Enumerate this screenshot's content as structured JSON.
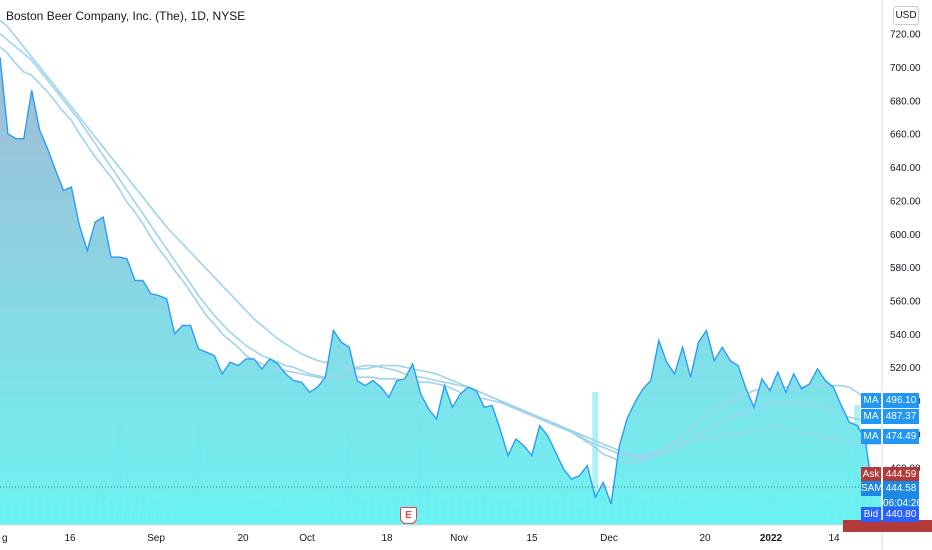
{
  "title": "Boston Beer Company, Inc. (The), 1D, NYSE",
  "currency_button": "USD",
  "earnings_marker": "E",
  "colors": {
    "price_line": "#2a9df4",
    "area_top": "#9db7d3",
    "area_bottom": "#66f2f2",
    "ma": "#9fd3ee",
    "volume": "#7fe9ec",
    "ask": "#b33a3a",
    "bid": "#2962ff",
    "last": "#1e88e5"
  },
  "price_axis": {
    "ticks": [
      "720.00",
      "700.00",
      "680.00",
      "660.00",
      "640.00",
      "620.00",
      "600.00",
      "580.00",
      "560.00",
      "540.00",
      "520.00",
      "500.00",
      "480.00",
      "460.00"
    ]
  },
  "time_axis": {
    "ticks": [
      "g",
      "16",
      "Sep",
      "20",
      "Oct",
      "18",
      "Nov",
      "15",
      "Dec",
      "20",
      "2022",
      "14"
    ]
  },
  "price_tags": [
    {
      "label": "MA",
      "value": "496.10",
      "color": "#2196f3"
    },
    {
      "label": "MA",
      "value": "487.37",
      "color": "#2196f3"
    },
    {
      "label": "MA",
      "value": "474.49",
      "color": "#2196f3"
    },
    {
      "label": "Ask",
      "value": "444.59",
      "color": "#b33a3a"
    },
    {
      "label": "SAM",
      "value": "444.58",
      "color": "#1e88e5"
    },
    {
      "label": "",
      "value": "06:04:26",
      "color": "#1e88e5"
    },
    {
      "label": "Bid",
      "value": "440.80",
      "color": "#2962ff"
    }
  ],
  "chart_data": {
    "type": "area",
    "title": "Boston Beer Company, Inc. (The), 1D, NYSE",
    "x_range": [
      "2021-08-10",
      "2022-01-18"
    ],
    "ylim": [
      441,
      724
    ],
    "series": [
      {
        "name": "SAM",
        "x": [
          "2021-08-10",
          "2021-08-11",
          "2021-08-12",
          "2021-08-13",
          "2021-08-16",
          "2021-08-17",
          "2021-08-18",
          "2021-08-19",
          "2021-08-20",
          "2021-08-23",
          "2021-08-24",
          "2021-08-25",
          "2021-08-26",
          "2021-08-27",
          "2021-08-30",
          "2021-08-31",
          "2021-09-01",
          "2021-09-02",
          "2021-09-03",
          "2021-09-07",
          "2021-09-08",
          "2021-09-09",
          "2021-09-10",
          "2021-09-13",
          "2021-09-14",
          "2021-09-15",
          "2021-09-16",
          "2021-09-17",
          "2021-09-20",
          "2021-09-21",
          "2021-09-22",
          "2021-09-23",
          "2021-09-24",
          "2021-09-27",
          "2021-09-28",
          "2021-09-29",
          "2021-09-30",
          "2021-10-01",
          "2021-10-04",
          "2021-10-05",
          "2021-10-06",
          "2021-10-07",
          "2021-10-08",
          "2021-10-11",
          "2021-10-12",
          "2021-10-13",
          "2021-10-14",
          "2021-10-15",
          "2021-10-18",
          "2021-10-19",
          "2021-10-20",
          "2021-10-21",
          "2021-10-22",
          "2021-10-25",
          "2021-10-26",
          "2021-10-27",
          "2021-10-28",
          "2021-10-29",
          "2021-11-01",
          "2021-11-02",
          "2021-11-03",
          "2021-11-04",
          "2021-11-05",
          "2021-11-08",
          "2021-11-09",
          "2021-11-10",
          "2021-11-11",
          "2021-11-12",
          "2021-11-15",
          "2021-11-16",
          "2021-11-17",
          "2021-11-18",
          "2021-11-19",
          "2021-11-22",
          "2021-11-23",
          "2021-11-24",
          "2021-11-26",
          "2021-11-29",
          "2021-11-30",
          "2021-12-01",
          "2021-12-02",
          "2021-12-03",
          "2021-12-06",
          "2021-12-07",
          "2021-12-08",
          "2021-12-09",
          "2021-12-10",
          "2021-12-13",
          "2021-12-14",
          "2021-12-15",
          "2021-12-16",
          "2021-12-17",
          "2021-12-20",
          "2021-12-21",
          "2021-12-22",
          "2021-12-23",
          "2021-12-27",
          "2021-12-28",
          "2021-12-29",
          "2021-12-30",
          "2021-12-31",
          "2022-01-03",
          "2022-01-04",
          "2022-01-05",
          "2022-01-06",
          "2022-01-07",
          "2022-01-10",
          "2022-01-11",
          "2022-01-12",
          "2022-01-13",
          "2022-01-14",
          "2022-01-18"
        ],
        "values": [
          706,
          660,
          657,
          657,
          686,
          662,
          651,
          638,
          626,
          628,
          605,
          590,
          607,
          610,
          586,
          586,
          585,
          572,
          572,
          564,
          563,
          561,
          540,
          545,
          545,
          531,
          529,
          527,
          516,
          523,
          521,
          525,
          525,
          519,
          525,
          522,
          516,
          512,
          511,
          505,
          508,
          514,
          542,
          535,
          532,
          512,
          509,
          512,
          508,
          502,
          512,
          513,
          522,
          504,
          495,
          489,
          509,
          496,
          504,
          508,
          506,
          496,
          497,
          483,
          467,
          477,
          473,
          467,
          485,
          479,
          469,
          459,
          453,
          455,
          461,
          442,
          451,
          438,
          472,
          489,
          499,
          507,
          512,
          536,
          523,
          516,
          532,
          514,
          535,
          542,
          524,
          532,
          524,
          521,
          507,
          496,
          513,
          506,
          517,
          505,
          516,
          507,
          510,
          519,
          512,
          508,
          497,
          487,
          485,
          477,
          444,
          444
        ]
      },
      {
        "name": "MA 1",
        "values": [
          712,
          708,
          702,
          697,
          695,
          690,
          685,
          679,
          673,
          668,
          660,
          653,
          646,
          640,
          634,
          627,
          619,
          613,
          606,
          598,
          591,
          585,
          578,
          572,
          565,
          558,
          551,
          546,
          540,
          536,
          532,
          527,
          524,
          522,
          520,
          519,
          518,
          517,
          516,
          515,
          514,
          513,
          513,
          514,
          514,
          514,
          514,
          514,
          513,
          513,
          513,
          512,
          512,
          511,
          511,
          510,
          509,
          507,
          505,
          503,
          502,
          501,
          500,
          499,
          497,
          495,
          493,
          491,
          489,
          487,
          485,
          483,
          481,
          478,
          475,
          472,
          468,
          466,
          464,
          463,
          463,
          464,
          466,
          469,
          472,
          475,
          479,
          483,
          487,
          491,
          495,
          498,
          500,
          502,
          504,
          506,
          507,
          507,
          508,
          508,
          508,
          508,
          509,
          509,
          509,
          509,
          509,
          508,
          505,
          501,
          497,
          496
        ]
      },
      {
        "name": "MA 2",
        "values": [
          728,
          724,
          718,
          712,
          706,
          700,
          694,
          688,
          682,
          676,
          670,
          664,
          658,
          652,
          646,
          640,
          634,
          628,
          622,
          616,
          610,
          604,
          599,
          594,
          589,
          584,
          579,
          574,
          569,
          564,
          559,
          554,
          549,
          545,
          541,
          537,
          534,
          531,
          528,
          526,
          524,
          523,
          522,
          521,
          520,
          519,
          519,
          520,
          521,
          521,
          521,
          520,
          519,
          518,
          517,
          516,
          514,
          512,
          510,
          508,
          506,
          504,
          502,
          500,
          498,
          496,
          494,
          492,
          490,
          488,
          486,
          484,
          482,
          479,
          476,
          474,
          472,
          470,
          468,
          467,
          466,
          466,
          467,
          468,
          469,
          471,
          473,
          476,
          479,
          482,
          485,
          488,
          490,
          492,
          494,
          496,
          497,
          498,
          499,
          499,
          499,
          499,
          498,
          497,
          496,
          494,
          492,
          490,
          489,
          488,
          487,
          487
        ]
      },
      {
        "name": "MA 3",
        "values": [
          720,
          716,
          712,
          708,
          704,
          698,
          692,
          686,
          680,
          674,
          668,
          661,
          654,
          647,
          640,
          633,
          626,
          619,
          612,
          605,
          598,
          591,
          584,
          577,
          570,
          563,
          557,
          551,
          546,
          541,
          537,
          533,
          530,
          527,
          525,
          523,
          521,
          520,
          518,
          516,
          515,
          514,
          515,
          517,
          519,
          520,
          521,
          521,
          520,
          519,
          518,
          516,
          515,
          514,
          513,
          512,
          511,
          510,
          509,
          508,
          506,
          504,
          502,
          500,
          498,
          496,
          494,
          492,
          490,
          488,
          486,
          484,
          482,
          480,
          478,
          476,
          474,
          472,
          470,
          468,
          467,
          467,
          468,
          470,
          472,
          474,
          475,
          476,
          477,
          478,
          478,
          479,
          479,
          480,
          481,
          482,
          483,
          484,
          484,
          483,
          482,
          481,
          480,
          479,
          478,
          477,
          476,
          475,
          474,
          474,
          474,
          474
        ]
      },
      {
        "name": "MA 4",
        "values": [
          731,
          730,
          729,
          729,
          728,
          727,
          727,
          726,
          725,
          724,
          723,
          722,
          721,
          720,
          719,
          718,
          717,
          716,
          715,
          714,
          713,
          712,
          711,
          710,
          709,
          708,
          707,
          706,
          705,
          704,
          703,
          702,
          701,
          700,
          699,
          698,
          697,
          696,
          695,
          694,
          693,
          692,
          691,
          690,
          689,
          688,
          687,
          686,
          685,
          684,
          683,
          682,
          681,
          680,
          679,
          678,
          677,
          676,
          675,
          674,
          673,
          672,
          671,
          670,
          669,
          668,
          667,
          666,
          665,
          664,
          663,
          662,
          661,
          660,
          659,
          658,
          657,
          656,
          655,
          654,
          653,
          652,
          651,
          650,
          649,
          648,
          647,
          646,
          645,
          644,
          643,
          642,
          641,
          640,
          639,
          638,
          637,
          636,
          635,
          634,
          633,
          632,
          631,
          630,
          629,
          628,
          627,
          626,
          625,
          624,
          623,
          622
        ]
      }
    ],
    "volume": [
      30,
      25,
      22,
      28,
      30,
      33,
      27,
      23,
      31,
      36,
      29,
      26,
      33,
      39,
      24,
      99,
      28,
      36,
      31,
      26,
      23,
      29,
      31,
      26,
      33,
      99,
      27,
      30,
      24,
      36,
      28,
      31,
      26,
      24,
      33,
      19,
      31,
      29,
      36,
      23,
      26,
      20,
      33,
      28,
      92,
      30,
      25,
      31,
      22,
      26,
      29,
      28,
      33,
      108,
      41,
      33,
      25,
      29,
      32,
      24,
      27,
      30,
      21,
      26,
      24,
      20,
      28,
      31,
      23,
      30,
      26,
      35,
      29,
      19,
      28,
      133,
      36,
      25,
      30,
      33,
      26,
      24,
      29,
      22,
      28,
      31,
      24,
      30,
      36,
      27,
      23,
      26,
      32,
      25,
      21,
      28,
      30,
      40,
      29,
      22,
      26,
      31,
      34,
      27,
      24,
      22,
      36,
      27,
      120,
      35,
      30,
      20
    ]
  }
}
